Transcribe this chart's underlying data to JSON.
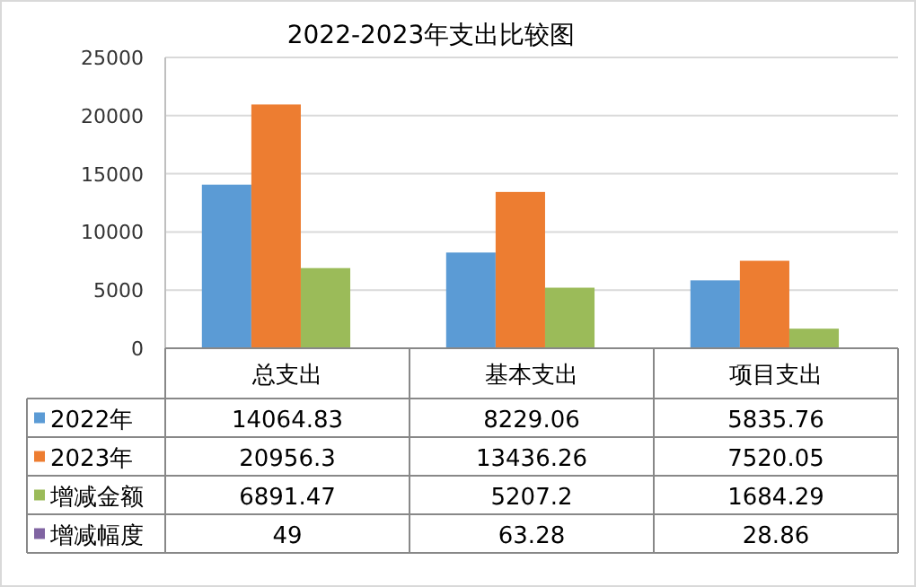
{
  "chart_data": {
    "type": "bar",
    "title": "2022-2023年支出比较图",
    "categories": [
      "总支出",
      "基本支出",
      "项目支出"
    ],
    "series": [
      {
        "name": "2022年",
        "color": "#5b9bd5",
        "values": [
          14064.83,
          8229.06,
          5835.76
        ]
      },
      {
        "name": "2023年",
        "color": "#ed7d31",
        "values": [
          20956.3,
          13436.26,
          7520.05
        ]
      },
      {
        "name": "增减金额",
        "color": "#9bbb59",
        "values": [
          6891.47,
          5207.2,
          1684.29
        ]
      },
      {
        "name": "增减幅度",
        "color": "#8064a2",
        "values": [
          49,
          63.28,
          28.86
        ]
      }
    ],
    "ylim": [
      0,
      25000
    ],
    "yticks": [
      0,
      5000,
      10000,
      15000,
      20000,
      25000
    ],
    "grid": "y",
    "data_labels": true,
    "legend": "bottom"
  }
}
